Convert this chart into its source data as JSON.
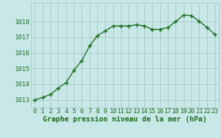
{
  "x": [
    0,
    1,
    2,
    3,
    4,
    5,
    6,
    7,
    8,
    9,
    10,
    11,
    12,
    13,
    14,
    15,
    16,
    17,
    18,
    19,
    20,
    21,
    22,
    23
  ],
  "y": [
    1013.0,
    1013.15,
    1013.35,
    1013.75,
    1014.1,
    1014.9,
    1015.5,
    1016.45,
    1017.1,
    1017.4,
    1017.72,
    1017.72,
    1017.72,
    1017.8,
    1017.72,
    1017.5,
    1017.5,
    1017.62,
    1018.0,
    1018.42,
    1018.38,
    1018.02,
    1017.62,
    1017.18
  ],
  "xlabel": "Graphe pression niveau de la mer (hPa)",
  "ylim": [
    1012.5,
    1019.2
  ],
  "xlim": [
    -0.5,
    23.5
  ],
  "yticks": [
    1013,
    1014,
    1015,
    1016,
    1017,
    1018
  ],
  "xticks": [
    0,
    1,
    2,
    3,
    4,
    5,
    6,
    7,
    8,
    9,
    10,
    11,
    12,
    13,
    14,
    15,
    16,
    17,
    18,
    19,
    20,
    21,
    22,
    23
  ],
  "line_color": "#1a6b1a",
  "marker": "+",
  "bg_color": "#c8e8e8",
  "grid_color": "#a0c0c0",
  "tick_label_color": "#1a6b1a",
  "xlabel_color": "#1a6b1a",
  "xlabel_fontsize": 7.5,
  "tick_fontsize": 6.5,
  "line_width": 1.0,
  "marker_size": 4,
  "marker_linewidth": 1.0
}
